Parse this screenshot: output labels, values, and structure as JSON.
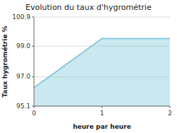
{
  "chart_data": {
    "type": "area",
    "title": "Evolution du taux d'hygrométrie",
    "xlabel": "heure par heure",
    "ylabel": "Taux hygrométrie %",
    "x": [
      0,
      1,
      2
    ],
    "values": [
      96.3,
      99.5,
      99.5
    ],
    "color": "#6bbdd4",
    "xlim": [
      0,
      2
    ],
    "ylim": [
      95.1,
      100.9
    ],
    "xticks": [
      0,
      1,
      2
    ],
    "yticks": [
      95.1,
      {
        "value": 97.0,
        "label": "97.0"
      },
      {
        "value": 99.0,
        "label": "99.0"
      },
      100.9
    ],
    "grid": true
  }
}
